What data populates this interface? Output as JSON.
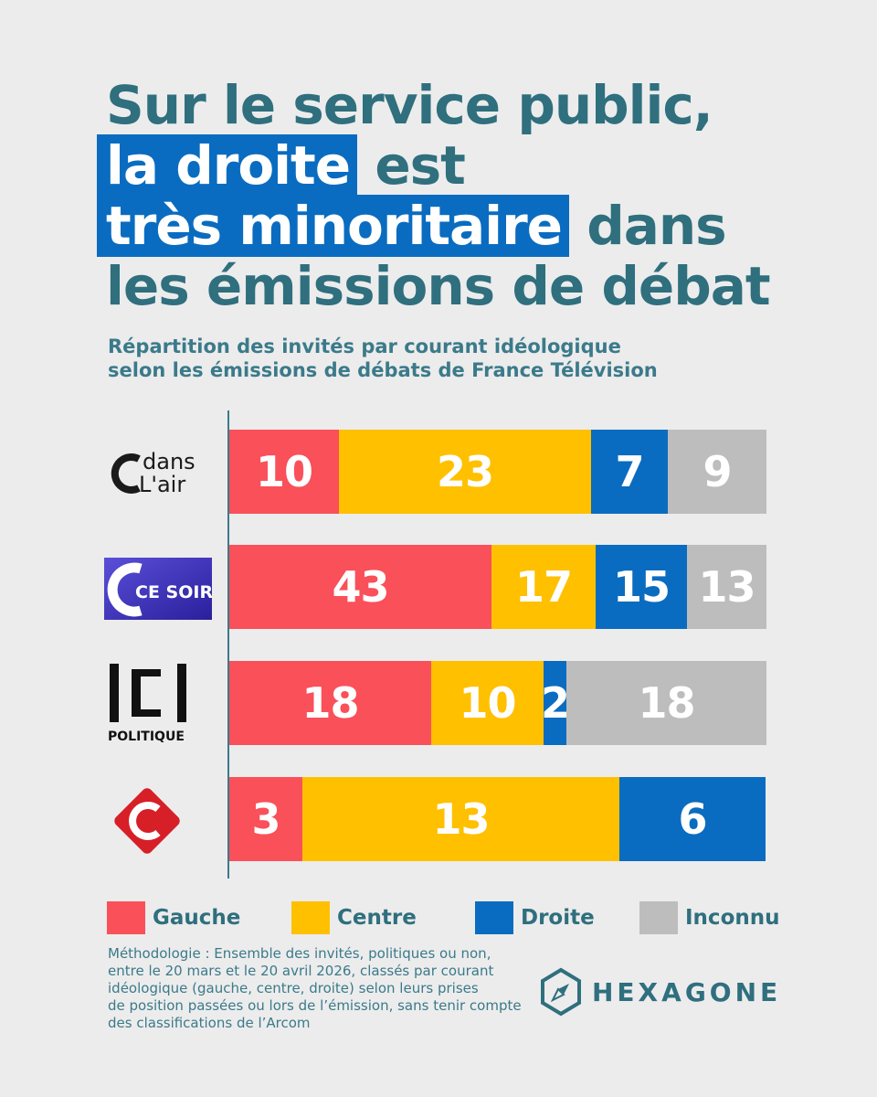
{
  "title": {
    "line1": "Sur le service public,",
    "line2_highlight": "la droite",
    "line2_rest": " est",
    "line3_highlight": "très minoritaire",
    "line3_rest": " dans",
    "line4": "les émissions de débat"
  },
  "subtitle": {
    "line1": "Répartition des invités par courant idéologique",
    "line2": "selon les émissions de débats de France Télévision"
  },
  "logos": {
    "c_dans_l_air": [
      "dans",
      "L'air"
    ],
    "c_ce_soir": "CE SOIR",
    "c_politique": "POLITIQUE"
  },
  "colors": {
    "gauche": "#f9505a",
    "centre": "#ffc000",
    "droite": "#0a6cc0",
    "inconnu": "#bdbdbd"
  },
  "chart_data": {
    "type": "bar",
    "orientation": "horizontal",
    "stacked": true,
    "normalized": true,
    "categories": [
      "C dans l'air",
      "C ce soir",
      "C politique",
      "C l'hebdo"
    ],
    "series": [
      {
        "name": "Gauche",
        "values": [
          10,
          43,
          18,
          3
        ]
      },
      {
        "name": "Centre",
        "values": [
          23,
          17,
          10,
          13
        ]
      },
      {
        "name": "Droite",
        "values": [
          7,
          15,
          2,
          6
        ]
      },
      {
        "name": "Inconnu",
        "values": [
          9,
          13,
          18,
          0
        ]
      }
    ],
    "legend_position": "bottom",
    "grid": false
  },
  "legend": [
    "Gauche",
    "Centre",
    "Droite",
    "Inconnu"
  ],
  "methodology": [
    "Méthodologie : Ensemble des invités, politiques ou non,",
    "entre le 20 mars et le 20 avril 2026, classés par courant",
    "idéologique (gauche, centre, droite) selon leurs prises",
    "de position passées ou lors de l’émission, sans tenir compte",
    "des classifications de l’Arcom"
  ],
  "brand": "HEXAGONE"
}
